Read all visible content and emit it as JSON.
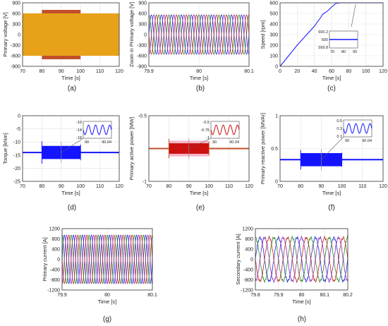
{
  "colors": {
    "phase_a": "#1f2bd6",
    "phase_b": "#2e8b22",
    "phase_c": "#c22a2a",
    "phase_d": "#8a2cb8",
    "blue": "#1414ff",
    "red": "#cc1010",
    "orange": "#e8a21a",
    "brown": "#c0502a",
    "pink": "#f4b6c8"
  },
  "chart_data": [
    {
      "id": "a",
      "caption": "(a)",
      "type": "area",
      "title": "",
      "xlabel": "Time [s]",
      "ylabel": "Primary voltage [V]",
      "xlim": [
        70,
        120
      ],
      "ylim": [
        -900,
        900
      ],
      "xticks": [
        70,
        80,
        90,
        100,
        110,
        120
      ],
      "yticks": [
        900,
        600,
        300,
        0,
        -300,
        -600,
        -900
      ],
      "series": [
        {
          "values": [
            [
              70,
              600
            ],
            [
              120,
              600
            ],
            [
              70,
              -600
            ],
            [
              120,
              -600
            ]
          ]
        },
        {
          "values": [
            [
              80,
              700
            ],
            [
              100,
              700
            ],
            [
              80,
              -700
            ],
            [
              100,
              -700
            ]
          ]
        }
      ]
    },
    {
      "id": "b",
      "caption": "(b)",
      "type": "line",
      "title": "",
      "xlabel": "Time [s]",
      "ylabel": "Zoom in Primary voltage [V]",
      "xlim": [
        79.9,
        80.1
      ],
      "ylim": [
        -900,
        900
      ],
      "xticks": [
        79.9,
        80,
        80.1
      ],
      "xtick_labels": [
        "79.9",
        "80",
        "80.1"
      ],
      "yticks": [
        900,
        600,
        300,
        0,
        -300,
        -600,
        -900
      ],
      "amplitude": 560,
      "cycles": 10
    },
    {
      "id": "c",
      "caption": "(c)",
      "type": "line",
      "title": "",
      "xlabel": "Time [s]",
      "ylabel": "Speed [rpm]",
      "xlim": [
        0,
        120
      ],
      "ylim": [
        0,
        600
      ],
      "xticks": [
        0,
        20,
        40,
        60,
        80,
        100,
        120
      ],
      "yticks": [
        600,
        500,
        400,
        300,
        200,
        100,
        0
      ],
      "series": [
        {
          "values": [
            [
              0,
              0
            ],
            [
              10,
              100
            ],
            [
              20,
              200
            ],
            [
              30,
              290
            ],
            [
              40,
              380
            ],
            [
              48,
              470
            ],
            [
              50,
              495
            ],
            [
              55,
              520
            ],
            [
              60,
              560
            ],
            [
              65,
              595
            ],
            [
              70,
              600
            ],
            [
              120,
              600
            ]
          ]
        }
      ],
      "inset": {
        "xticks": [
          70,
          80,
          90
        ],
        "yticks": [
          "600.2",
          "600",
          "599.8"
        ]
      }
    },
    {
      "id": "d",
      "caption": "(d)",
      "type": "area",
      "title": "",
      "xlabel": "Time [s]",
      "ylabel": "Torque [kNm]",
      "xlim": [
        70,
        120
      ],
      "ylim": [
        -25,
        0
      ],
      "xticks": [
        70,
        80,
        90,
        100,
        110,
        120
      ],
      "yticks": [
        0,
        -5,
        -10,
        -15,
        -20,
        -25
      ],
      "series": [
        {
          "values": [
            [
              70,
              -14
            ],
            [
              80,
              -14
            ],
            [
              100,
              -14
            ],
            [
              120,
              -14
            ]
          ]
        }
      ],
      "inset": {
        "xticks": [
          "90",
          "90.04"
        ],
        "yticks": [
          "-10",
          "-14",
          "-18"
        ]
      }
    },
    {
      "id": "e",
      "caption": "(e)",
      "type": "area",
      "title": "",
      "xlabel": "Time [s]",
      "ylabel": "Primary active power [MW]",
      "xlim": [
        70,
        120
      ],
      "ylim": [
        -1,
        -0.5
      ],
      "xticks": [
        70,
        80,
        90,
        100,
        110,
        120
      ],
      "yticks": [
        -0.5,
        -1
      ],
      "series": [
        {
          "values": [
            [
              70,
              -0.75
            ],
            [
              80,
              -0.75
            ],
            [
              100,
              -0.75
            ],
            [
              120,
              -0.75
            ]
          ]
        }
      ],
      "inset": {
        "xticks": [
          "90",
          "90.04"
        ],
        "yticks": [
          "-0.5",
          "-0.75",
          "-1"
        ]
      }
    },
    {
      "id": "f",
      "caption": "(f)",
      "type": "area",
      "title": "",
      "xlabel": "Time [s]",
      "ylabel": "Primary reactive power [MVAr]",
      "xlim": [
        70,
        120
      ],
      "ylim": [
        0,
        1
      ],
      "xticks": [
        70,
        80,
        90,
        100,
        110,
        120
      ],
      "yticks": [
        1,
        0.5,
        0
      ],
      "series": [
        {
          "values": [
            [
              70,
              0.33
            ],
            [
              80,
              0.33
            ],
            [
              100,
              0.33
            ],
            [
              120,
              0.33
            ]
          ]
        }
      ],
      "inset": {
        "xticks": [
          "90",
          "90.04"
        ],
        "yticks": [
          "0.5",
          "0.3",
          "0.1"
        ]
      }
    },
    {
      "id": "g",
      "caption": "(g)",
      "type": "line",
      "title": "",
      "xlabel": "Time [s]",
      "ylabel": "Primary current [A]",
      "xlim": [
        79.9,
        80.1
      ],
      "ylim": [
        -1200,
        1200
      ],
      "xticks": [
        79.9,
        80,
        80.1
      ],
      "xtick_labels": [
        "79.9",
        "80",
        "80.1"
      ],
      "yticks": [
        1200,
        800,
        400,
        0,
        -400,
        -800,
        -1200
      ],
      "amplitude": 950,
      "cycles": 10
    },
    {
      "id": "h",
      "caption": "(h)",
      "type": "line",
      "title": "",
      "xlabel": "Time [s]",
      "ylabel": "Secondary current [A]",
      "xlim": [
        79.8,
        80.2
      ],
      "ylim": [
        -1200,
        1200
      ],
      "xticks": [
        79.8,
        79.9,
        80,
        80.1,
        80.2
      ],
      "xtick_labels": [
        "79.8",
        "79.9",
        "80",
        "80.1",
        "80.2"
      ],
      "yticks": [
        1200,
        800,
        400,
        0,
        -400,
        -800,
        -1200
      ],
      "amplitude": 850,
      "cycles": 5
    }
  ]
}
